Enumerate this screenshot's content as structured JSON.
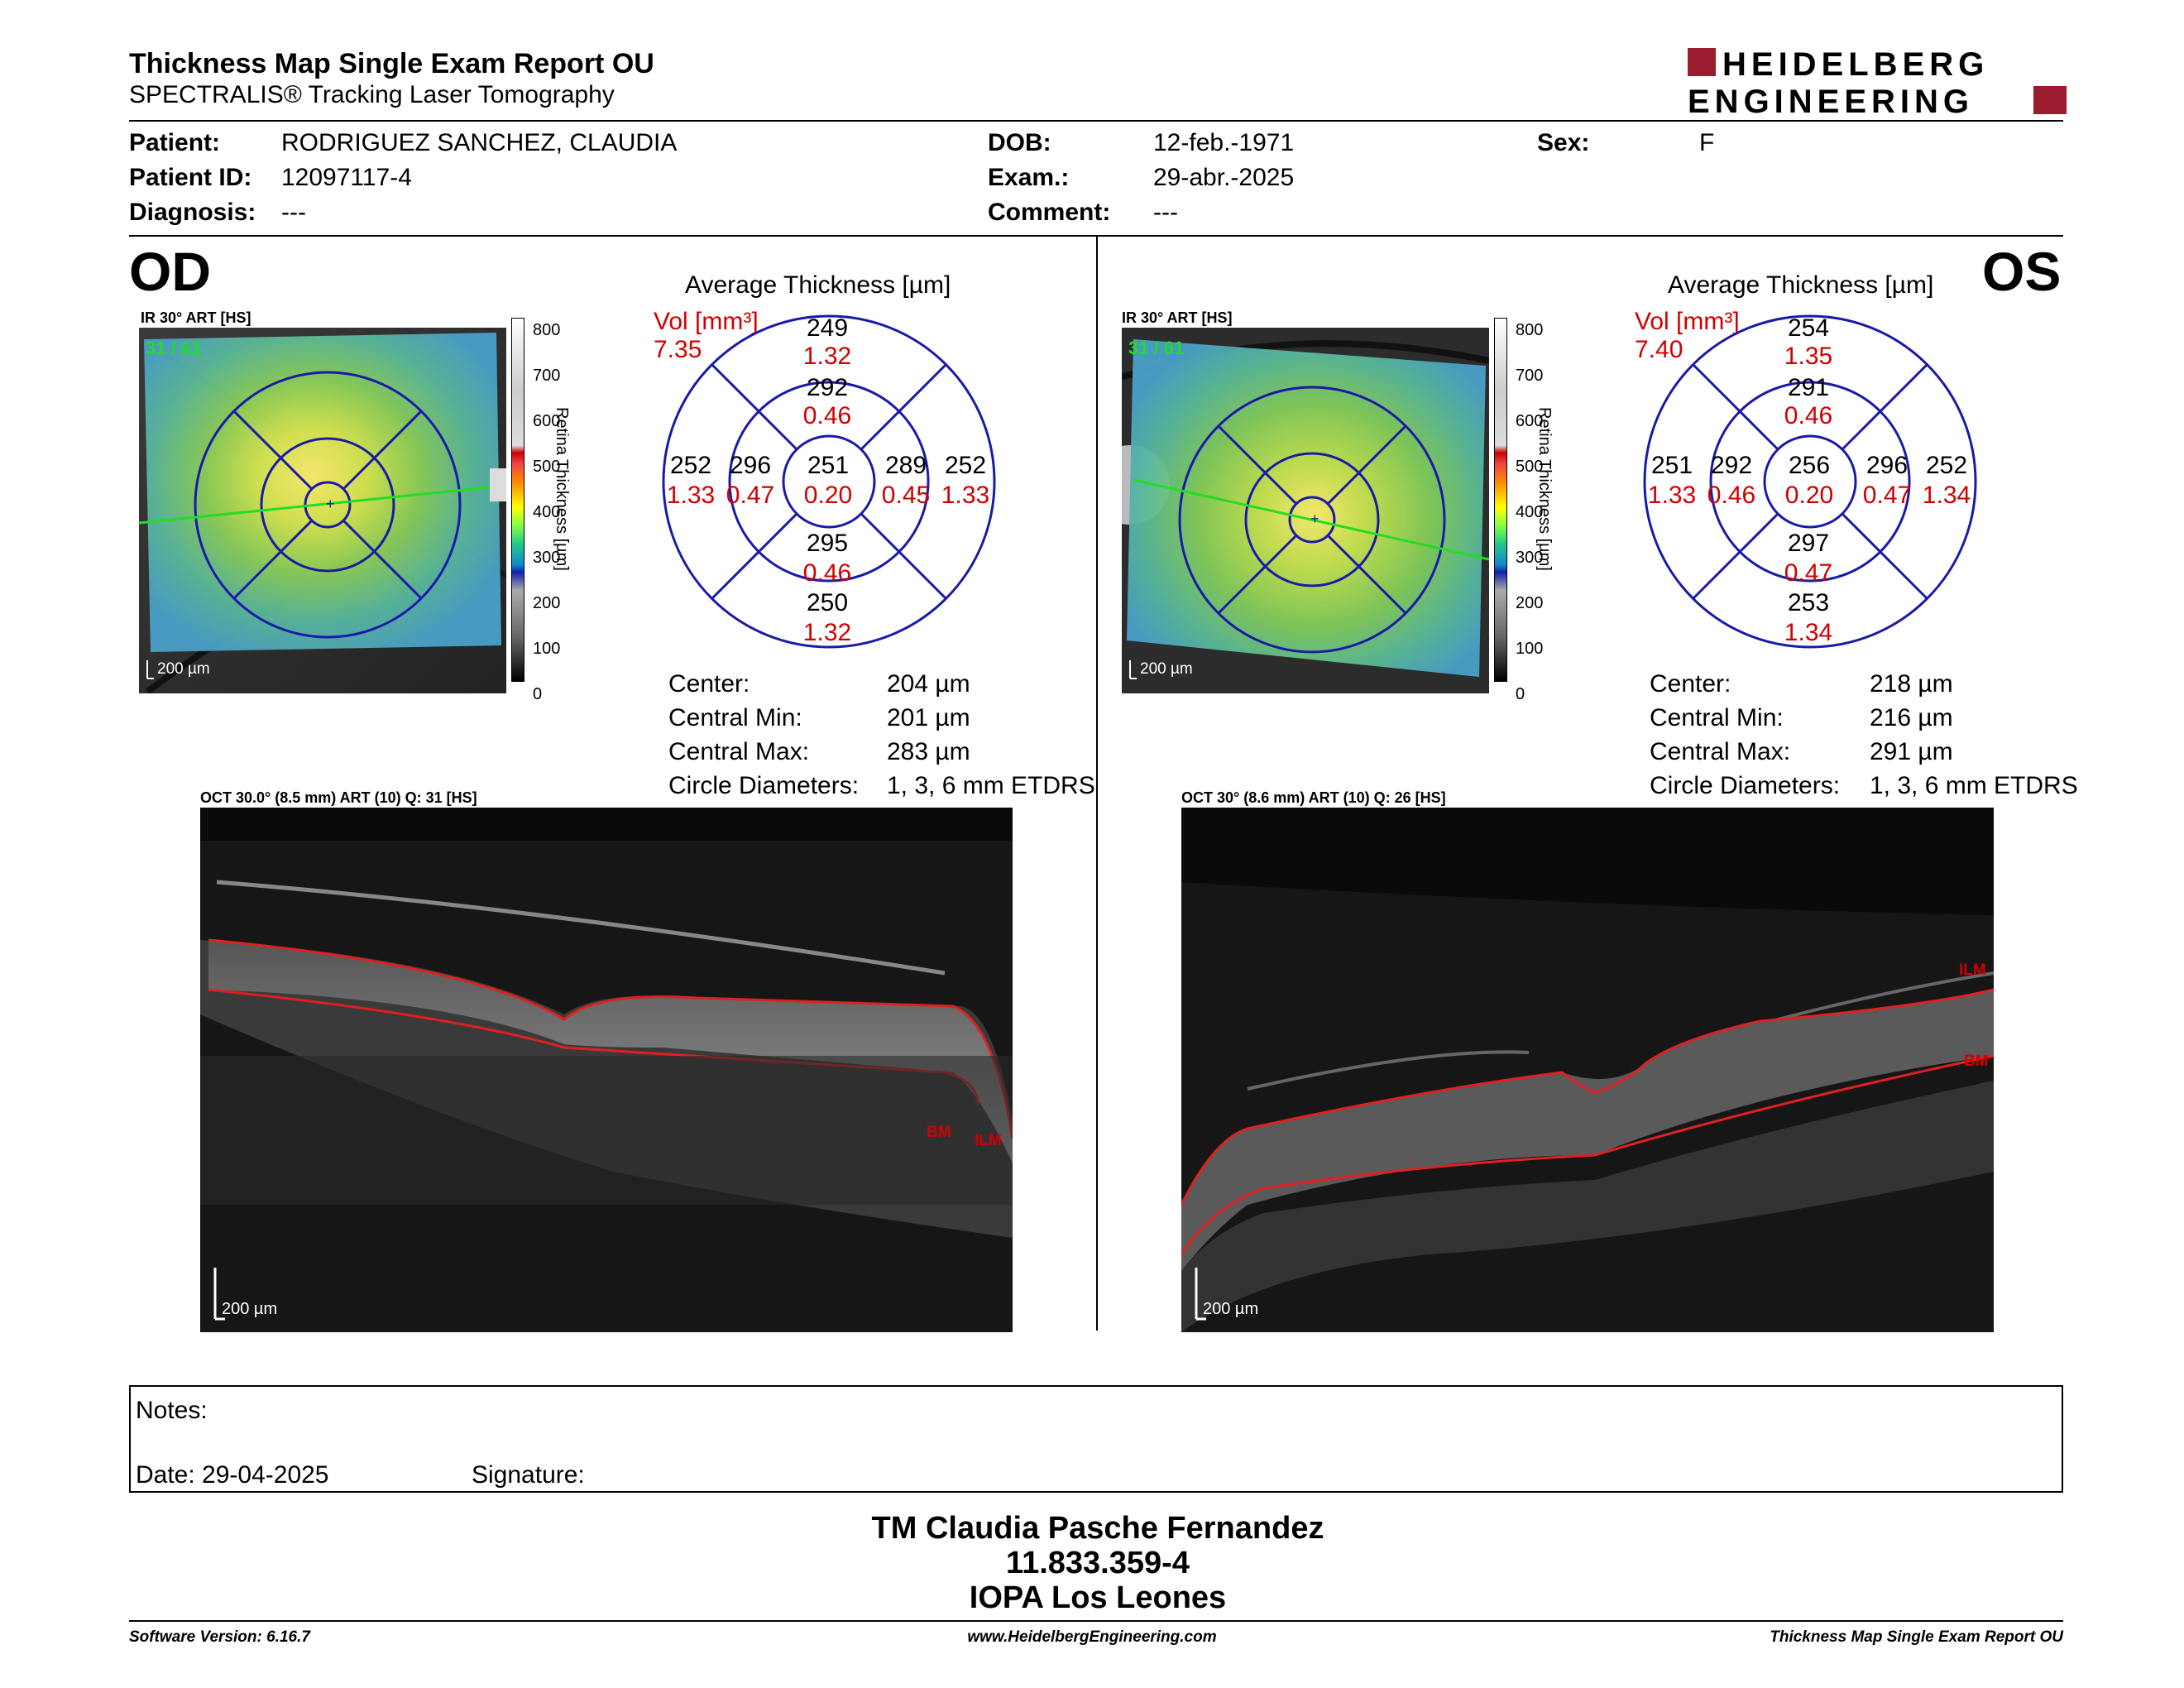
{
  "header": {
    "title": "Thickness Map Single Exam Report OU",
    "subtitle": "SPECTRALIS® Tracking Laser Tomography",
    "logo_line1": "HEIDELBERG",
    "logo_line2": "ENGINEERING"
  },
  "patient": {
    "name_label": "Patient:",
    "name": "RODRIGUEZ SANCHEZ, CLAUDIA",
    "id_label": "Patient ID:",
    "id": "12097117-4",
    "diagnosis_label": "Diagnosis:",
    "diagnosis": "---",
    "dob_label": "DOB:",
    "dob": "12-feb.-1971",
    "exam_label": "Exam.:",
    "exam": "29-abr.-2025",
    "comment_label": "Comment:",
    "comment": "---",
    "sex_label": "Sex:",
    "sex": "F"
  },
  "colorbar": {
    "ticks": [
      "800",
      "700",
      "600",
      "500",
      "400",
      "300",
      "200",
      "100",
      "0"
    ],
    "label": "Retina Thickness [µm]"
  },
  "od": {
    "eye": "OD",
    "ir_caption": "IR 30° ART [HS]",
    "ir_frames": "31 / 61",
    "ir_scale": "200 µm",
    "avg_title": "Average Thickness [µm]",
    "vol_label": "Vol [mm³]",
    "vol_total": "7.35",
    "sectors": {
      "outer_top": [
        "249",
        "1.32"
      ],
      "inner_top": [
        "292",
        "0.46"
      ],
      "outer_left": [
        "252",
        "1.33"
      ],
      "inner_left": [
        "296",
        "0.47"
      ],
      "center": [
        "251",
        "0.20"
      ],
      "inner_right": [
        "289",
        "0.45"
      ],
      "outer_right": [
        "252",
        "1.33"
      ],
      "inner_bottom": [
        "295",
        "0.46"
      ],
      "outer_bottom": [
        "250",
        "1.32"
      ]
    },
    "stats": {
      "center_label": "Center:",
      "center": "204 µm",
      "min_label": "Central Min:",
      "min": "201 µm",
      "max_label": "Central Max:",
      "max": "283 µm",
      "diam_label": "Circle Diameters:",
      "diam": "1, 3, 6 mm ETDRS"
    },
    "oct_caption": "OCT 30.0° (8.5 mm) ART (10) Q: 31 [HS]",
    "oct_scale": "200 µm",
    "bm_label": "BM",
    "ilm_label": "ILM"
  },
  "os": {
    "eye": "OS",
    "ir_caption": "IR 30° ART [HS]",
    "ir_frames": "31 / 61",
    "ir_scale": "200 µm",
    "avg_title": "Average Thickness [µm]",
    "vol_label": "Vol [mm³]",
    "vol_total": "7.40",
    "sectors": {
      "outer_top": [
        "254",
        "1.35"
      ],
      "inner_top": [
        "291",
        "0.46"
      ],
      "outer_left": [
        "251",
        "1.33"
      ],
      "inner_left": [
        "292",
        "0.46"
      ],
      "center": [
        "256",
        "0.20"
      ],
      "inner_right": [
        "296",
        "0.47"
      ],
      "outer_right": [
        "252",
        "1.34"
      ],
      "inner_bottom": [
        "297",
        "0.47"
      ],
      "outer_bottom": [
        "253",
        "1.34"
      ]
    },
    "stats": {
      "center_label": "Center:",
      "center": "218 µm",
      "min_label": "Central Min:",
      "min": "216 µm",
      "max_label": "Central Max:",
      "max": "291 µm",
      "diam_label": "Circle Diameters:",
      "diam": "1, 3, 6 mm ETDRS"
    },
    "oct_caption": "OCT 30° (8.6 mm) ART (10) Q: 26 [HS]",
    "oct_scale": "200 µm",
    "ilm_label": "ILM",
    "bm_label": "BM"
  },
  "notes": {
    "notes_label": "Notes:",
    "date_label": "Date: 29-04-2025",
    "signature_label": "Signature:"
  },
  "signoff": {
    "name": "TM Claudia Pasche Fernandez",
    "rut": "11.833.359-4",
    "institution": "IOPA Los Leones"
  },
  "footer": {
    "software": "Software Version: 6.16.7",
    "website": "www.HeidelbergEngineering.com",
    "report": "Thickness Map Single Exam Report OU"
  },
  "colors": {
    "brand_red": "#9b1c2e",
    "value_red": "#d00000",
    "grid_blue": "#1a1aa8"
  }
}
